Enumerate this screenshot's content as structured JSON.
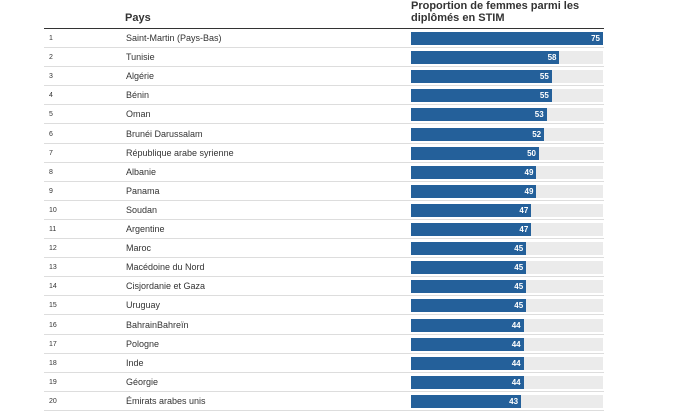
{
  "header": {
    "country_label": "Pays",
    "value_label": "Proportion de femmes parmi les diplômés en STIM"
  },
  "colors": {
    "bar": "#24609a",
    "track": "#ebebeb",
    "label": "#ffffff"
  },
  "chart_data": {
    "type": "bar",
    "title": "",
    "xlabel": "Pays",
    "ylabel": "Proportion de femmes parmi les diplômés en STIM",
    "ylim": [
      0,
      75
    ],
    "ranks": [
      "1",
      "2",
      "3",
      "4",
      "5",
      "6",
      "7",
      "8",
      "9",
      "10",
      "11",
      "12",
      "13",
      "14",
      "15",
      "16",
      "17",
      "18",
      "19",
      "20"
    ],
    "categories": [
      "Saint-Martin (Pays-Bas)",
      "Tunisie",
      "Algérie",
      "Bénin",
      "Oman",
      "Brunéi Darussalam",
      "République arabe syrienne",
      "Albanie",
      "Panama",
      "Soudan",
      "Argentine",
      "Maroc",
      "Macédoine du Nord",
      "Cisjordanie et Gaza",
      "Uruguay",
      "BahrainBahreïn",
      "Pologne",
      "Inde",
      "Géorgie",
      "Émirats arabes unis"
    ],
    "values": [
      75,
      58,
      55,
      55,
      53,
      52,
      50,
      49,
      49,
      47,
      47,
      45,
      45,
      45,
      45,
      44,
      44,
      44,
      44,
      43
    ]
  }
}
